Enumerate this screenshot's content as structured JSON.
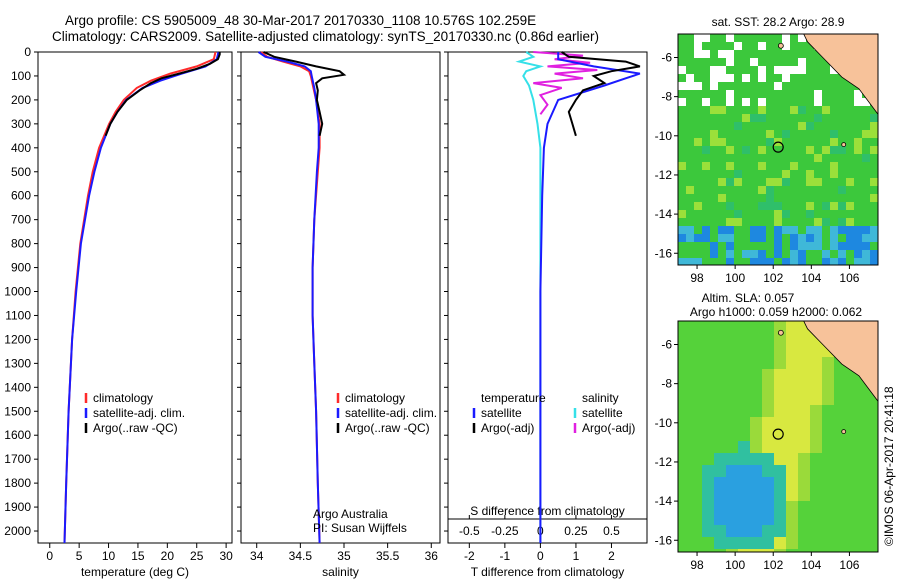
{
  "header": {
    "title_line1": "Argo profile: CS 5905009_48 30-Mar-2017 20170330_1108 10.576S 102.259E",
    "title_line2": "Climatology: CARS2009. Satellite-adjusted climatology: synTS_20170330.nc (0.86d earlier)"
  },
  "colors": {
    "climatology": "#ff2a2a",
    "satellite": "#1a1aff",
    "argo": "#000000",
    "salinity_satellite": "#35e0e8",
    "salinity_argo": "#e020e0",
    "land": "#f7c29a"
  },
  "chart_data": [
    {
      "type": "line",
      "panel": "temperature",
      "xlabel": "temperature (deg C)",
      "ylabel": "",
      "xlim": [
        -2,
        31
      ],
      "ylim": [
        2050,
        0
      ],
      "x_ticks": [
        0,
        5,
        10,
        15,
        20,
        25,
        30
      ],
      "y_ticks": [
        0,
        100,
        200,
        300,
        400,
        500,
        600,
        700,
        800,
        900,
        1000,
        1100,
        1200,
        1300,
        1400,
        1500,
        1600,
        1700,
        1800,
        1900,
        2000
      ],
      "legend": [
        "climatology",
        "satellite-adj. clim.",
        "Argo(..raw -QC)"
      ],
      "legend_position": "lower-middle",
      "series": [
        {
          "name": "climatology",
          "color": "#ff2a2a",
          "depth": [
            0,
            30,
            60,
            90,
            120,
            150,
            200,
            250,
            300,
            400,
            500,
            600,
            800,
            1000,
            1200,
            1500,
            1800,
            2050
          ],
          "values": [
            28.2,
            27.9,
            25.0,
            20.5,
            17.2,
            14.8,
            12.6,
            11.2,
            10.1,
            8.4,
            7.3,
            6.5,
            5.2,
            4.4,
            3.8,
            3.2,
            2.8,
            2.5
          ]
        },
        {
          "name": "satellite-adj. clim.",
          "color": "#1a1aff",
          "depth": [
            0,
            30,
            60,
            90,
            120,
            150,
            200,
            250,
            300,
            400,
            500,
            600,
            800,
            1000,
            1200,
            1500,
            1800,
            2050
          ],
          "values": [
            28.7,
            28.4,
            26.5,
            22.5,
            18.8,
            15.8,
            13.0,
            11.5,
            10.3,
            8.7,
            7.6,
            6.7,
            5.3,
            4.5,
            3.8,
            3.2,
            2.8,
            2.5
          ]
        },
        {
          "name": "Argo(..raw -QC)",
          "color": "#000000",
          "depth": [
            0,
            10,
            30,
            50,
            70,
            90,
            110,
            130,
            160,
            200,
            250,
            300,
            350
          ],
          "values": [
            28.9,
            28.9,
            28.6,
            27.2,
            25.0,
            22.0,
            19.0,
            17.2,
            15.3,
            13.1,
            11.5,
            10.3,
            9.5
          ]
        }
      ]
    },
    {
      "type": "line",
      "panel": "salinity",
      "xlabel": "salinity",
      "ylabel": "",
      "xlim": [
        33.82,
        36.1
      ],
      "ylim": [
        2050,
        0
      ],
      "x_ticks": [
        34,
        34.5,
        35,
        35.5,
        36
      ],
      "legend": [
        "climatology",
        "satellite-adj. clim.",
        "Argo(..raw -QC)"
      ],
      "legend_position": "lower-middle",
      "annotations": [
        "Argo Australia",
        "PI: Susan Wijffels"
      ],
      "series": [
        {
          "name": "climatology",
          "color": "#ff2a2a",
          "depth": [
            0,
            20,
            40,
            60,
            80,
            100,
            150,
            200,
            300,
            400,
            500,
            700,
            900,
            1100,
            1300,
            1500,
            1800,
            2050
          ],
          "values": [
            34.05,
            34.12,
            34.3,
            34.5,
            34.6,
            34.62,
            34.65,
            34.68,
            34.72,
            34.72,
            34.7,
            34.66,
            34.64,
            34.64,
            34.66,
            34.68,
            34.7,
            34.72
          ]
        },
        {
          "name": "satellite-adj. clim.",
          "color": "#1a1aff",
          "depth": [
            0,
            20,
            40,
            60,
            80,
            100,
            150,
            200,
            300,
            400,
            500,
            700,
            900,
            1100,
            1300,
            1500,
            1800,
            2050
          ],
          "values": [
            34.02,
            34.1,
            34.35,
            34.55,
            34.62,
            34.63,
            34.66,
            34.68,
            34.71,
            34.71,
            34.69,
            34.66,
            34.64,
            34.64,
            34.66,
            34.68,
            34.7,
            34.72
          ]
        },
        {
          "name": "Argo(..raw -QC)",
          "color": "#000000",
          "depth": [
            0,
            20,
            40,
            60,
            80,
            95,
            110,
            130,
            160,
            200,
            250,
            300,
            350
          ],
          "values": [
            34.08,
            34.2,
            34.45,
            34.68,
            34.95,
            35.0,
            34.75,
            34.68,
            34.7,
            34.69,
            34.72,
            34.75,
            34.72
          ]
        }
      ]
    },
    {
      "type": "line",
      "panel": "difference",
      "xlabel": "T difference from climatology",
      "x2label": "S difference from climatology",
      "xlim": [
        -2.6,
        3.0
      ],
      "x_ticks": [
        -2,
        -1,
        0,
        1,
        2
      ],
      "x2_ticks": [
        -0.5,
        -0.25,
        0,
        0.25,
        0.5
      ],
      "ylim": [
        2050,
        0
      ],
      "legend": [
        "temperature",
        "satellite",
        "Argo(-adj)",
        "salinity",
        "satellite",
        "Argo(-adj)"
      ],
      "legend_position": "lower-middle",
      "series": [
        {
          "name": "satellite",
          "color": "#1a1aff",
          "depth": [
            0,
            30,
            60,
            90,
            110,
            140,
            200,
            300,
            400,
            600,
            1000,
            1500,
            2050
          ],
          "values": [
            0.5,
            0.5,
            1.5,
            2.8,
            2.4,
            1.8,
            0.5,
            0.2,
            0.1,
            0.05,
            0.0,
            0.0,
            0.0
          ]
        },
        {
          "name": "Argo(-adj)",
          "color": "#000000",
          "depth": [
            0,
            20,
            40,
            60,
            80,
            100,
            130,
            160,
            200,
            250,
            300,
            350
          ],
          "values": [
            0.6,
            0.8,
            2.4,
            2.8,
            2.0,
            1.5,
            1.8,
            1.2,
            1.0,
            0.8,
            0.9,
            1.0
          ]
        },
        {
          "name": "satellite",
          "color": "#35e0e8",
          "depth": [
            0,
            20,
            40,
            60,
            80,
            100,
            140,
            200,
            300,
            400,
            600,
            1000,
            2050
          ],
          "values": [
            -0.1,
            -0.05,
            -0.15,
            0.0,
            -0.1,
            -0.12,
            -0.08,
            -0.05,
            -0.02,
            0.0,
            0.0,
            0.0,
            0.0
          ]
        },
        {
          "name": "Argo(-adj)",
          "color": "#e020e0",
          "depth": [
            0,
            15,
            30,
            45,
            60,
            75,
            90,
            110,
            130,
            150,
            180,
            220,
            260
          ],
          "values": [
            -0.05,
            0.3,
            0.1,
            0.35,
            0.05,
            0.4,
            0.1,
            0.3,
            -0.05,
            0.15,
            0.0,
            0.05,
            0.0
          ]
        }
      ]
    },
    {
      "type": "heatmap",
      "panel": "sst-map",
      "title": "sat. SST: 28.2 Argo: 28.9",
      "x_ticks": [
        98,
        100,
        102,
        104,
        106
      ],
      "y_ticks": [
        -6,
        -8,
        -10,
        -12,
        -14,
        -16
      ],
      "xlim": [
        97,
        107.5
      ],
      "ylim": [
        -16.6,
        -4.8
      ],
      "marker": {
        "lon": 102.26,
        "lat": -10.58
      }
    },
    {
      "type": "heatmap",
      "panel": "sla-map",
      "title": "Altim. SLA: 0.057",
      "subtitle": "Argo h1000: 0.059 h2000: 0.062",
      "x_ticks": [
        98,
        100,
        102,
        104,
        106
      ],
      "y_ticks": [
        -6,
        -8,
        -10,
        -12,
        -14,
        -16
      ],
      "xlim": [
        97,
        107.5
      ],
      "ylim": [
        -16.6,
        -4.8
      ],
      "marker": {
        "lon": 102.26,
        "lat": -10.58
      }
    }
  ],
  "labels": {
    "leg_climatology": "climatology",
    "leg_satellite_adj": "satellite-adj. clim.",
    "leg_argo_raw": "Argo(..raw -QC)",
    "leg_temperature": "temperature",
    "leg_salinity": "salinity",
    "leg_satellite": "satellite",
    "leg_argo_adj": "Argo(-adj)",
    "credit_1": "Argo Australia",
    "credit_2": "PI: Susan Wijffels",
    "watermark": "©IMOS 06-Apr-2017 20:41:18"
  }
}
